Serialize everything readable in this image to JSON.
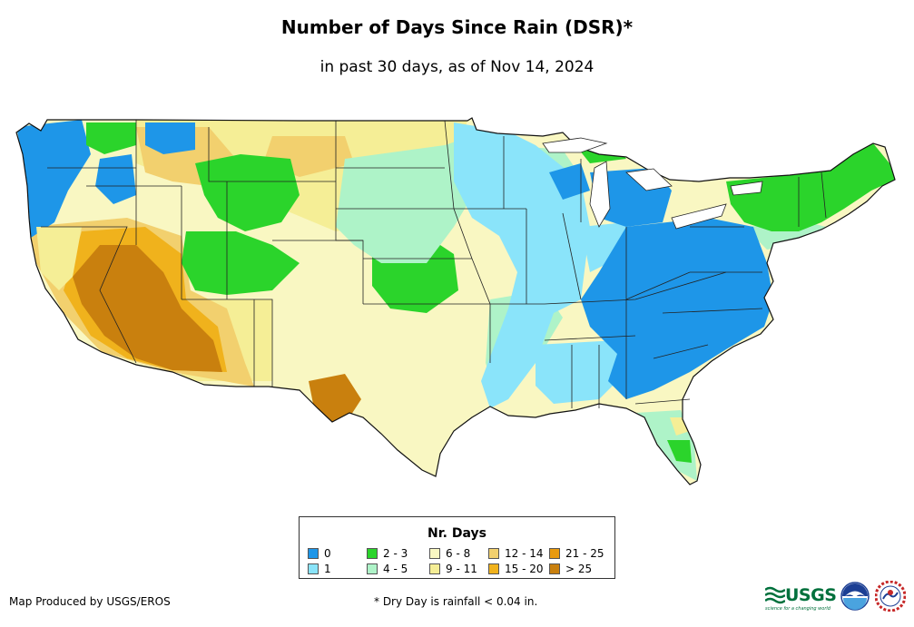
{
  "title": "Number of Days Since Rain (DSR)*",
  "subtitle": "in past 30 days, as of Nov 14, 2024",
  "legend": {
    "title": "Nr. Days",
    "items": [
      {
        "label": "0",
        "color": "#1e96e8"
      },
      {
        "label": "1",
        "color": "#8ae4fa"
      },
      {
        "label": "2 - 3",
        "color": "#2bd42b"
      },
      {
        "label": "4 - 5",
        "color": "#aef3c8"
      },
      {
        "label": "6 - 8",
        "color": "#f9f7c2"
      },
      {
        "label": "9 - 11",
        "color": "#f5ee96"
      },
      {
        "label": "12 - 14",
        "color": "#f2d06e"
      },
      {
        "label": "15 - 20",
        "color": "#f0b21c"
      },
      {
        "label": "21 - 25",
        "color": "#e89a10"
      },
      {
        "label": "> 25",
        "color": "#c9800e"
      }
    ]
  },
  "footer": {
    "producer": "Map Produced by USGS/EROS",
    "note": "* Dry Day is rainfall < 0.04 in.",
    "usgs_logo": "USGS",
    "usgs_tagline": "science for a changing world"
  },
  "icons": [
    "usgs-logo",
    "noaa-logo",
    "national-weather-service-logo"
  ]
}
